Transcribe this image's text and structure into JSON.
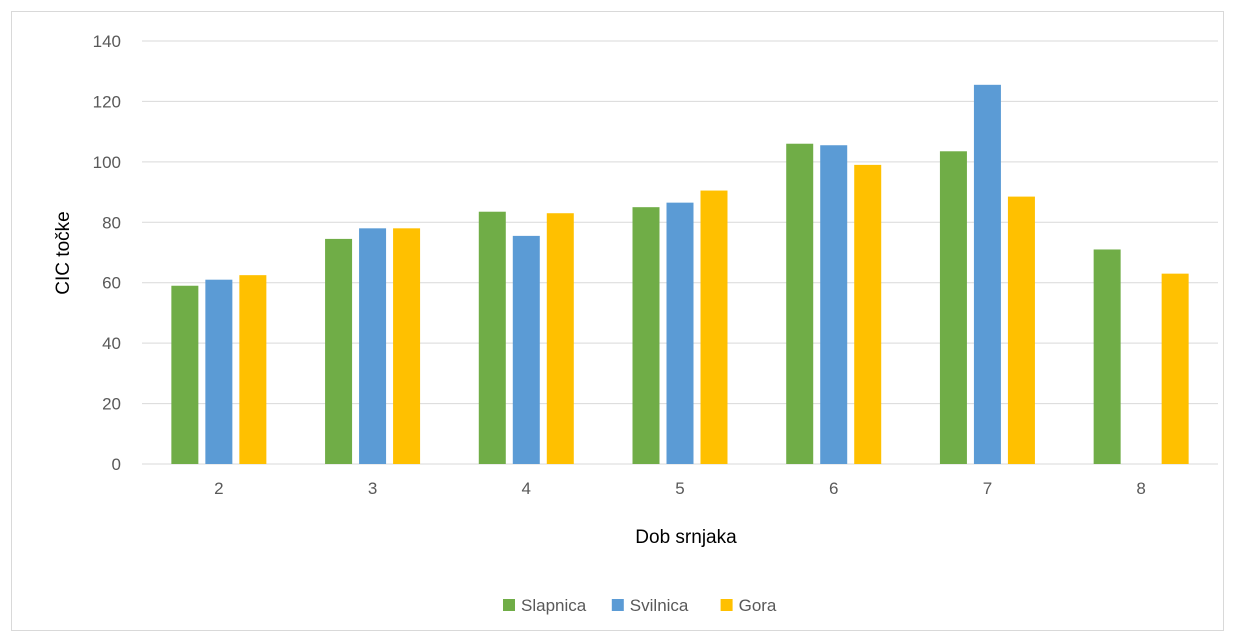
{
  "chart_data": {
    "type": "bar",
    "title": "",
    "xlabel": "Dob srnjaka",
    "ylabel": "CIC točke",
    "categories": [
      "2",
      "3",
      "4",
      "5",
      "6",
      "7",
      "8"
    ],
    "series": [
      {
        "name": "Slapnica",
        "color": "#70ad47",
        "values": [
          59,
          74.5,
          83.5,
          85,
          106,
          103.5,
          71
        ]
      },
      {
        "name": "Svilnica",
        "color": "#5b9bd5",
        "values": [
          61,
          78,
          75.5,
          86.5,
          105.5,
          125.5,
          null
        ]
      },
      {
        "name": "Gora",
        "color": "#ffc000",
        "values": [
          62.5,
          78,
          83,
          90.5,
          99,
          88.5,
          63
        ]
      }
    ],
    "ylim": [
      0,
      140
    ],
    "yticks": [
      0,
      20,
      40,
      60,
      80,
      100,
      120,
      140
    ],
    "grid": true,
    "legend_position": "bottom"
  }
}
